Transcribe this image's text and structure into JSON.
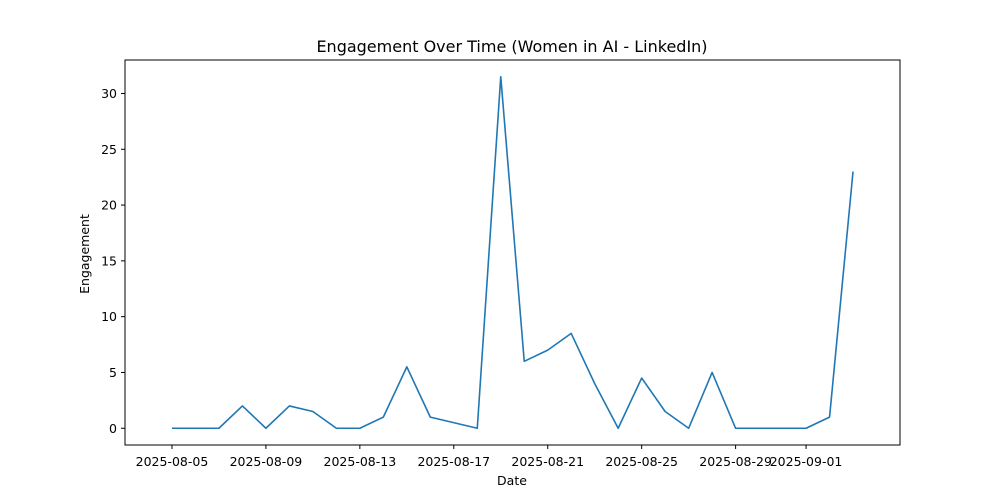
{
  "chart_data": {
    "type": "line",
    "title": "Engagement Over Time (Women in AI - LinkedIn)",
    "xlabel": "Date",
    "ylabel": "Engagement",
    "xlim": [
      "2025-08-03",
      "2025-09-05"
    ],
    "ylim": [
      -1.5,
      33
    ],
    "grid": false,
    "x_ticks": [
      "2025-08-05",
      "2025-08-09",
      "2025-08-13",
      "2025-08-17",
      "2025-08-21",
      "2025-08-25",
      "2025-08-29",
      "2025-09-01"
    ],
    "y_ticks": [
      0,
      5,
      10,
      15,
      20,
      25,
      30
    ],
    "series": [
      {
        "color": "#1f77b4",
        "points": [
          {
            "x": "2025-08-05",
            "y": 0
          },
          {
            "x": "2025-08-06",
            "y": 0
          },
          {
            "x": "2025-08-07",
            "y": 0
          },
          {
            "x": "2025-08-08",
            "y": 2
          },
          {
            "x": "2025-08-09",
            "y": 0
          },
          {
            "x": "2025-08-10",
            "y": 2
          },
          {
            "x": "2025-08-11",
            "y": 1.5
          },
          {
            "x": "2025-08-12",
            "y": 0
          },
          {
            "x": "2025-08-13",
            "y": 0
          },
          {
            "x": "2025-08-14",
            "y": 1
          },
          {
            "x": "2025-08-15",
            "y": 5.5
          },
          {
            "x": "2025-08-16",
            "y": 1
          },
          {
            "x": "2025-08-18",
            "y": 0
          },
          {
            "x": "2025-08-19",
            "y": 31.5
          },
          {
            "x": "2025-08-20",
            "y": 6
          },
          {
            "x": "2025-08-21",
            "y": 7
          },
          {
            "x": "2025-08-22",
            "y": 8.5
          },
          {
            "x": "2025-08-23",
            "y": 4
          },
          {
            "x": "2025-08-24",
            "y": 0
          },
          {
            "x": "2025-08-25",
            "y": 4.5
          },
          {
            "x": "2025-08-26",
            "y": 1.5
          },
          {
            "x": "2025-08-27",
            "y": 0
          },
          {
            "x": "2025-08-28",
            "y": 5
          },
          {
            "x": "2025-08-29",
            "y": 0
          },
          {
            "x": "2025-08-30",
            "y": 0
          },
          {
            "x": "2025-08-31",
            "y": 0
          },
          {
            "x": "2025-09-01",
            "y": 0
          },
          {
            "x": "2025-09-02",
            "y": 1
          },
          {
            "x": "2025-09-03",
            "y": 23
          }
        ]
      }
    ]
  }
}
